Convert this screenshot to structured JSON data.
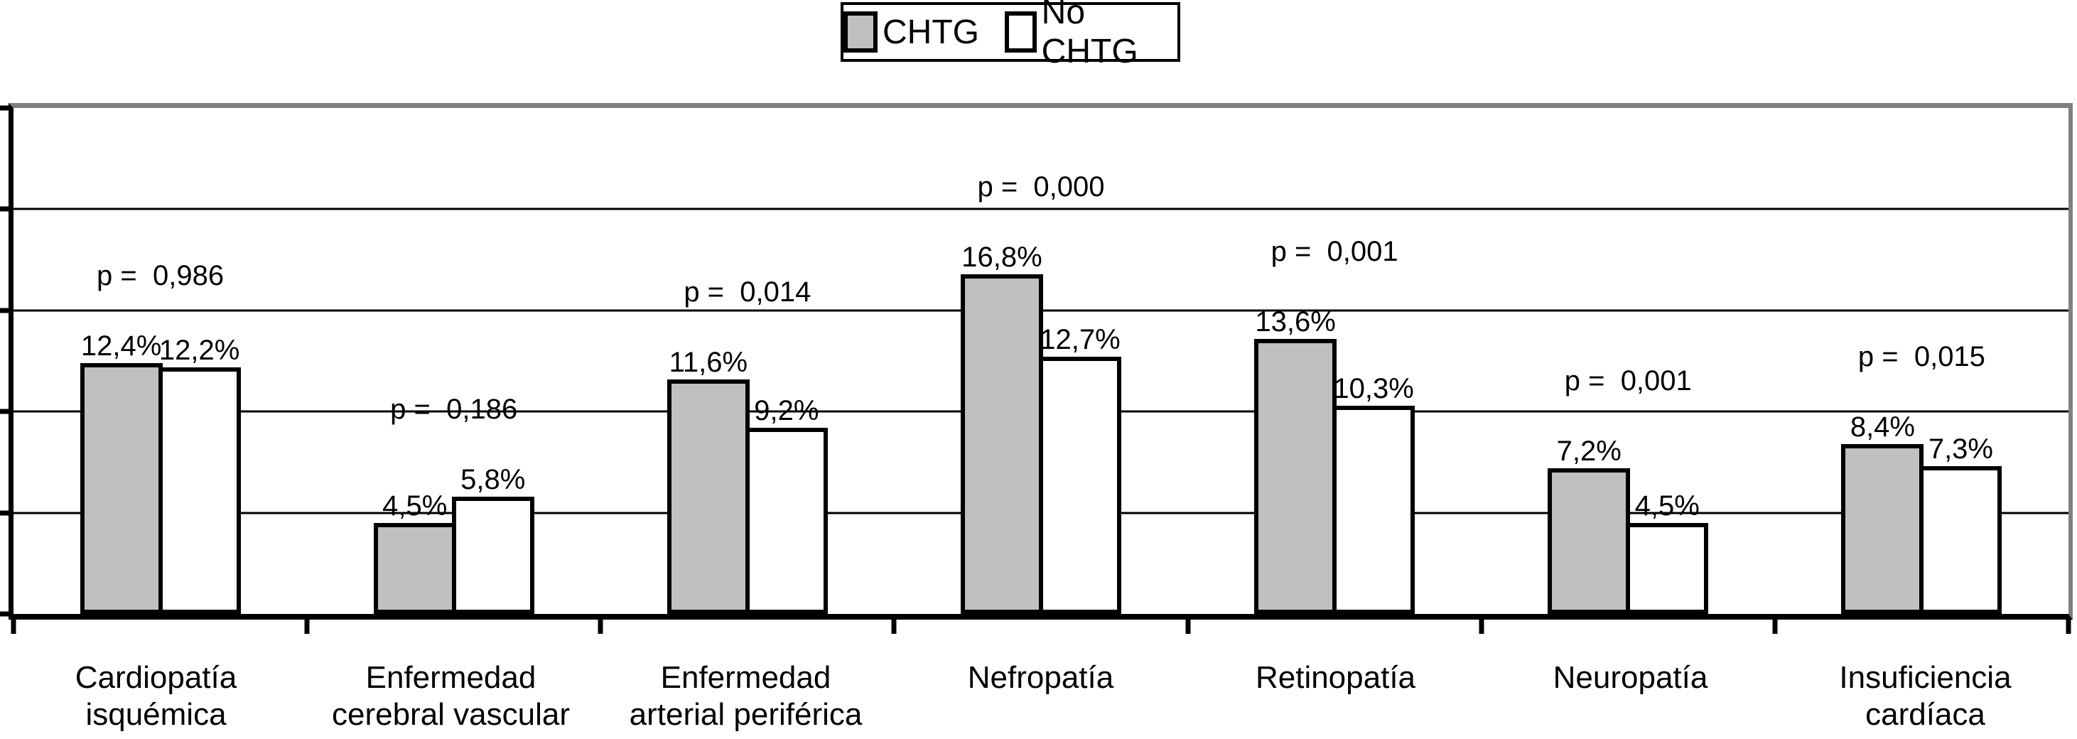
{
  "legend": {
    "items": [
      {
        "label": "CHTG",
        "swatch_color": "#C0C0C0"
      },
      {
        "label": "No CHTG",
        "swatch_color": "#FFFFFF"
      }
    ]
  },
  "chart_data": {
    "type": "bar",
    "title": "",
    "categories": [
      "Cardiopatía isquémica",
      "Enfermedad cerebral vascular",
      "Enfermedad arterial periférica",
      "Nefropatía",
      "Retinopatía",
      "Neuropatía",
      "Insuficiencia cardíaca"
    ],
    "category_label_lines": [
      [
        "Cardiopatía",
        "isquémica"
      ],
      [
        "Enfermedad",
        "cerebral vascular"
      ],
      [
        "Enfermedad",
        "arterial periférica"
      ],
      [
        "Nefropatía"
      ],
      [
        "Retinopatía"
      ],
      [
        "Neuropatía"
      ],
      [
        "Insuficiencia",
        "cardíaca"
      ]
    ],
    "series": [
      {
        "name": "CHTG",
        "color": "#C0C0C0",
        "values": [
          12.4,
          4.5,
          11.6,
          16.8,
          13.6,
          7.2,
          8.4
        ]
      },
      {
        "name": "No CHTG",
        "color": "#FFFFFF",
        "values": [
          12.2,
          5.8,
          9.2,
          12.7,
          10.3,
          4.5,
          7.3
        ]
      }
    ],
    "value_labels": [
      [
        "12,4%",
        "12,2%"
      ],
      [
        "4,5%",
        "5,8%"
      ],
      [
        "11,6%",
        "9,2%"
      ],
      [
        "16,8%",
        "12,7%"
      ],
      [
        "13,6%",
        "10,3%"
      ],
      [
        "7,2%",
        "4,5%"
      ],
      [
        "8,4%",
        "7,3%"
      ]
    ],
    "p_labels": [
      "p =  0,986",
      "p =  0,186",
      "p =  0,014",
      "p =  0,000",
      "p =  0,001",
      "p =  0,001",
      "p =  0,015"
    ],
    "ylabel": "",
    "xlabel": "",
    "ylim": [
      0,
      25
    ],
    "gridline_step": 5,
    "grid": true,
    "legend_position": "top-center",
    "axis_color": "#000000",
    "frame_color": "#808080"
  }
}
